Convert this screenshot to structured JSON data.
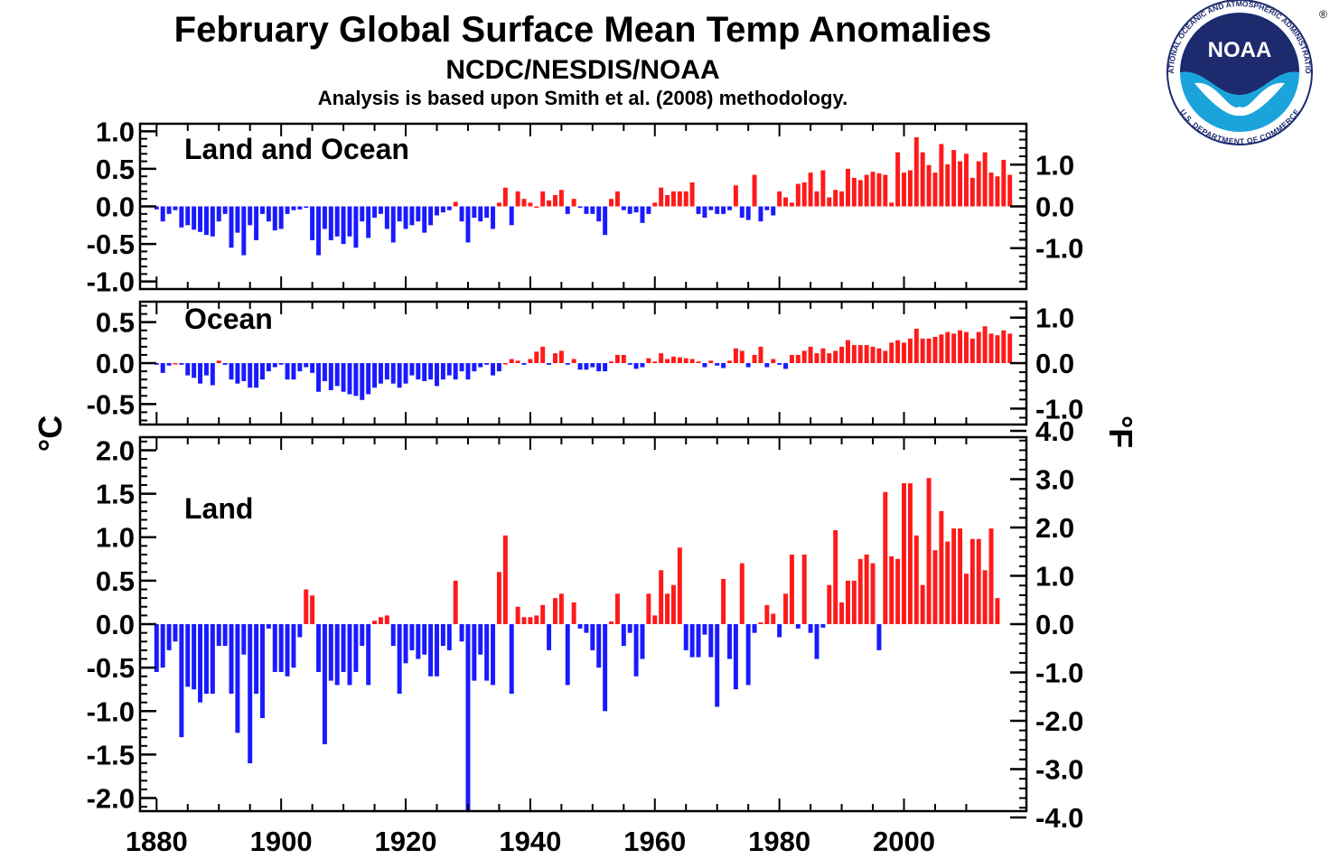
{
  "title": "February Global Surface Mean Temp Anomalies",
  "subtitle": "NCDC/NESDIS/NOAA",
  "note": "Analysis is based upon Smith et al. (2008) methodology.",
  "logo": {
    "text": "NOAA",
    "ring_text": "NATIONAL OCEANIC AND ATMOSPHERIC ADMINISTRATION",
    "bottom_text": "U.S. DEPARTMENT OF COMMERCE",
    "registered": "®"
  },
  "colors": {
    "positive": "#ff1a1a",
    "negative": "#1a1aff",
    "logo_navy": "#1d2a6e",
    "logo_cyan": "#1ba4dc"
  },
  "units": {
    "left": "°C",
    "right": "°F"
  },
  "chart_data": [
    {
      "type": "bar",
      "title": "Land and Ocean",
      "x_start": 1880,
      "ylim": [
        -1.1,
        1.1
      ],
      "left_ticks": [
        "1.0",
        "0.5",
        "0.0",
        "-0.5",
        "-1.0"
      ],
      "left_tick_values": [
        1.0,
        0.5,
        0.0,
        -0.5,
        -1.0
      ],
      "right_ticks": [
        "1.0",
        "0.0",
        "-1.0"
      ],
      "right_tick_values_F": [
        1.0,
        0.0,
        -1.0
      ],
      "values": [
        -0.04,
        -0.2,
        -0.1,
        -0.05,
        -0.28,
        -0.25,
        -0.31,
        -0.34,
        -0.38,
        -0.4,
        -0.2,
        -0.1,
        -0.55,
        -0.35,
        -0.65,
        -0.25,
        -0.45,
        -0.1,
        -0.2,
        -0.32,
        -0.3,
        -0.1,
        -0.05,
        -0.04,
        -0.02,
        -0.45,
        -0.65,
        -0.3,
        -0.45,
        -0.4,
        -0.5,
        -0.4,
        -0.55,
        -0.2,
        -0.42,
        -0.15,
        -0.1,
        -0.3,
        -0.48,
        -0.2,
        -0.3,
        -0.25,
        -0.2,
        -0.35,
        -0.25,
        -0.12,
        -0.08,
        -0.05,
        0.06,
        -0.2,
        -0.48,
        -0.15,
        -0.2,
        -0.15,
        -0.3,
        0.05,
        0.25,
        -0.25,
        0.2,
        0.1,
        0.05,
        0.0,
        0.2,
        0.08,
        0.15,
        0.22,
        -0.1,
        0.1,
        -0.02,
        -0.1,
        -0.1,
        -0.2,
        -0.38,
        0.1,
        0.2,
        -0.05,
        -0.1,
        -0.08,
        -0.22,
        -0.1,
        0.05,
        0.25,
        0.15,
        0.2,
        0.2,
        0.2,
        0.32,
        -0.1,
        -0.15,
        -0.05,
        -0.1,
        -0.1,
        -0.05,
        0.28,
        -0.15,
        -0.18,
        0.42,
        -0.2,
        -0.05,
        -0.12,
        0.2,
        0.12,
        0.05,
        0.3,
        0.32,
        0.45,
        0.2,
        0.48,
        0.12,
        0.22,
        0.2,
        0.5,
        0.38,
        0.35,
        0.42,
        0.46,
        0.44,
        0.42,
        0.05,
        0.72,
        0.45,
        0.48,
        0.92,
        0.72,
        0.55,
        0.45,
        0.83,
        0.56,
        0.75,
        0.6,
        0.7,
        0.38,
        0.6,
        0.72,
        0.45,
        0.4,
        0.62,
        0.42
      ]
    },
    {
      "type": "bar",
      "title": "Ocean",
      "x_start": 1880,
      "ylim": [
        -0.75,
        0.75
      ],
      "left_ticks": [
        "0.5",
        "0.0",
        "-0.5"
      ],
      "left_tick_values": [
        0.5,
        0.0,
        -0.5
      ],
      "right_ticks": [
        "1.0",
        "0.0",
        "-1.0"
      ],
      "right_tick_values_F": [
        1.0,
        0.0,
        -1.0
      ],
      "values": [
        -0.02,
        -0.12,
        -0.03,
        0.0,
        -0.02,
        -0.15,
        -0.18,
        -0.25,
        -0.15,
        -0.27,
        0.03,
        -0.02,
        -0.2,
        -0.25,
        -0.22,
        -0.3,
        -0.3,
        -0.2,
        -0.1,
        -0.05,
        -0.02,
        -0.2,
        -0.2,
        -0.1,
        -0.05,
        -0.12,
        -0.35,
        -0.22,
        -0.33,
        -0.28,
        -0.35,
        -0.38,
        -0.4,
        -0.45,
        -0.38,
        -0.3,
        -0.25,
        -0.2,
        -0.25,
        -0.3,
        -0.25,
        -0.15,
        -0.2,
        -0.22,
        -0.2,
        -0.28,
        -0.2,
        -0.15,
        -0.2,
        -0.1,
        -0.2,
        -0.1,
        -0.05,
        -0.02,
        -0.15,
        -0.1,
        0.0,
        0.05,
        0.03,
        -0.02,
        0.05,
        0.14,
        0.2,
        -0.02,
        0.12,
        0.15,
        -0.02,
        0.05,
        -0.08,
        -0.08,
        -0.05,
        -0.1,
        -0.1,
        0.02,
        0.1,
        0.1,
        -0.02,
        -0.07,
        -0.05,
        0.06,
        0.02,
        0.12,
        0.05,
        0.08,
        0.07,
        0.06,
        0.05,
        0.02,
        -0.05,
        0.03,
        -0.03,
        -0.06,
        0.03,
        0.18,
        0.15,
        -0.05,
        0.1,
        0.2,
        -0.05,
        0.05,
        -0.02,
        -0.07,
        0.1,
        0.1,
        0.15,
        0.2,
        0.12,
        0.18,
        0.12,
        0.15,
        0.2,
        0.28,
        0.22,
        0.22,
        0.22,
        0.2,
        0.18,
        0.15,
        0.25,
        0.28,
        0.25,
        0.3,
        0.42,
        0.3,
        0.3,
        0.32,
        0.35,
        0.38,
        0.36,
        0.4,
        0.38,
        0.3,
        0.38,
        0.45,
        0.36,
        0.34,
        0.4,
        0.36
      ]
    },
    {
      "type": "bar",
      "title": "Land",
      "x_start": 1880,
      "ylim": [
        -2.15,
        2.15
      ],
      "left_ticks": [
        "2.0",
        "1.5",
        "1.0",
        "0.5",
        "0.0",
        "-0.5",
        "-1.0",
        "-1.5",
        "-2.0"
      ],
      "left_tick_values": [
        2.0,
        1.5,
        1.0,
        0.5,
        0.0,
        -0.5,
        -1.0,
        -1.5,
        -2.0
      ],
      "right_ticks": [
        "4.0",
        "3.0",
        "2.0",
        "1.0",
        "0.0",
        "-1.0",
        "-2.0",
        "-3.0",
        "-4.0"
      ],
      "right_tick_values_F": [
        4.0,
        3.0,
        2.0,
        1.0,
        0.0,
        -1.0,
        -2.0,
        -3.0,
        -4.0
      ],
      "values": [
        -0.55,
        -0.5,
        -0.3,
        -0.2,
        -1.3,
        -0.72,
        -0.75,
        -0.9,
        -0.8,
        -0.8,
        -0.25,
        -0.25,
        -0.8,
        -1.25,
        -0.35,
        -1.6,
        -0.8,
        -1.08,
        -0.05,
        -0.55,
        -0.55,
        -0.6,
        -0.5,
        -0.15,
        0.4,
        0.33,
        -0.55,
        -1.38,
        -0.65,
        -0.7,
        -0.55,
        -0.7,
        -0.55,
        -0.25,
        -0.7,
        0.04,
        0.08,
        0.1,
        -0.25,
        -0.8,
        -0.45,
        -0.3,
        -0.4,
        -0.35,
        -0.6,
        -0.6,
        -0.25,
        -0.3,
        0.5,
        -0.2,
        -2.15,
        -0.65,
        -0.35,
        -0.65,
        -0.7,
        0.6,
        1.02,
        -0.8,
        0.2,
        0.08,
        0.08,
        0.1,
        0.22,
        -0.3,
        0.3,
        0.35,
        -0.7,
        0.25,
        -0.05,
        -0.1,
        -0.3,
        -0.5,
        -1.0,
        0.03,
        0.35,
        -0.25,
        -0.1,
        -0.6,
        -0.4,
        0.35,
        0.1,
        0.62,
        0.35,
        0.45,
        0.88,
        -0.3,
        -0.38,
        -0.38,
        -0.12,
        -0.38,
        -0.95,
        0.52,
        -0.4,
        -0.75,
        0.7,
        -0.7,
        -0.1,
        0.02,
        0.22,
        0.12,
        -0.15,
        0.35,
        0.8,
        -0.05,
        0.8,
        -0.1,
        -0.4,
        -0.04,
        0.45,
        1.08,
        0.25,
        0.5,
        0.5,
        0.75,
        0.8,
        0.7,
        -0.3,
        1.52,
        0.78,
        0.75,
        1.62,
        1.62,
        1.02,
        0.45,
        1.68,
        0.85,
        1.3,
        0.95,
        1.1,
        1.1,
        0.58,
        0.98,
        0.98,
        0.62,
        1.1,
        0.3
      ]
    }
  ],
  "x_axis": {
    "ticks": [
      "1880",
      "1900",
      "1920",
      "1940",
      "1960",
      "1980",
      "2000"
    ],
    "tick_values": [
      1880,
      1900,
      1920,
      1940,
      1960,
      1980,
      2000
    ]
  }
}
